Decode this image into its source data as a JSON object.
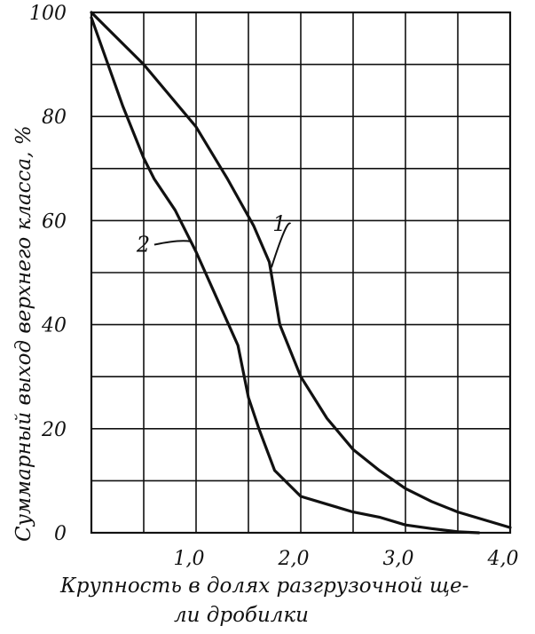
{
  "chart_data": {
    "type": "line",
    "title": "",
    "xlabel": "Крупность в долях разгрузочной ще-",
    "xlabel_line2": "ли дробилки",
    "ylabel": "Суммарный выход верхнего класса, %",
    "xlim": [
      0.0,
      4.0
    ],
    "ylim": [
      0,
      100
    ],
    "x_tick_labels": [
      {
        "value": 1.0,
        "label": "1,0"
      },
      {
        "value": 2.0,
        "label": "2,0"
      },
      {
        "value": 3.0,
        "label": "3,0"
      },
      {
        "value": 4.0,
        "label": "4,0"
      }
    ],
    "y_tick_labels": [
      {
        "value": 0,
        "label": "0"
      },
      {
        "value": 20,
        "label": "20"
      },
      {
        "value": 40,
        "label": "40"
      },
      {
        "value": 60,
        "label": "60"
      },
      {
        "value": 80,
        "label": "80"
      },
      {
        "value": 100,
        "label": "100"
      }
    ],
    "grid": true,
    "grid_step_x": 0.5,
    "grid_step_y": 10,
    "series": [
      {
        "name": "1",
        "points": [
          [
            0.0,
            100
          ],
          [
            0.5,
            90
          ],
          [
            1.0,
            78
          ],
          [
            1.3,
            68
          ],
          [
            1.55,
            59
          ],
          [
            1.7,
            52
          ],
          [
            1.8,
            40
          ],
          [
            2.0,
            30
          ],
          [
            2.25,
            22
          ],
          [
            2.5,
            16
          ],
          [
            2.75,
            12
          ],
          [
            3.0,
            8.5
          ],
          [
            3.25,
            6
          ],
          [
            3.5,
            4
          ],
          [
            3.75,
            2.5
          ],
          [
            4.0,
            1
          ]
        ]
      },
      {
        "name": "2",
        "points": [
          [
            0.0,
            99
          ],
          [
            0.3,
            82
          ],
          [
            0.5,
            72
          ],
          [
            0.6,
            68
          ],
          [
            0.8,
            62
          ],
          [
            1.0,
            54
          ],
          [
            1.2,
            45
          ],
          [
            1.4,
            36
          ],
          [
            1.5,
            26
          ],
          [
            1.6,
            20
          ],
          [
            1.75,
            12
          ],
          [
            2.0,
            7
          ],
          [
            2.25,
            5.5
          ],
          [
            2.5,
            4
          ],
          [
            2.75,
            3
          ],
          [
            3.0,
            1.5
          ],
          [
            3.25,
            0.8
          ],
          [
            3.5,
            0.2
          ],
          [
            3.7,
            0
          ]
        ]
      }
    ]
  }
}
